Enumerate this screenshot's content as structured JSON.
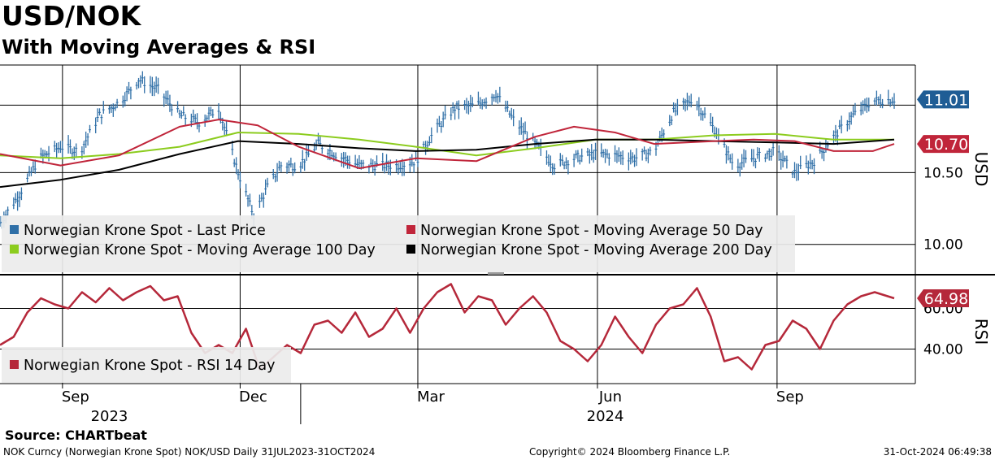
{
  "title": "USD/NOK",
  "subtitle": "With Moving Averages & RSI",
  "source": "Source:  CHARTbeat",
  "footer_left": "NOK Curncy (Norwegian Krone Spot) NOK/USD  Daily 31JUL2023-31OCT2024",
  "footer_center": "Copyright© 2024 Bloomberg Finance L.P.",
  "footer_right": "31-Oct-2024 06:49:38",
  "colors": {
    "price": "#2f6fa7",
    "ma50": "#c0253a",
    "ma100": "#8ccc1e",
    "ma200": "#000000",
    "rsi": "#b5283a",
    "last_badge": "#1f5d95",
    "ma50_badge": "#c0253a",
    "rsi_badge": "#b5283a"
  },
  "chart_data": [
    {
      "type": "line",
      "panel": "price",
      "title": "USD/NOK",
      "ylabel": "USD",
      "ylim": [
        9.8,
        11.25
      ],
      "yticks": [
        10.0,
        10.5
      ],
      "yticklabels": [
        "10.00",
        "10.50"
      ],
      "month_labels": [
        "Sep",
        "Dec",
        "Mar",
        "Jun",
        "Sep"
      ],
      "month_dates": [
        "2023-09-01",
        "2023-12-01",
        "2024-03-01",
        "2024-06-01",
        "2024-09-01"
      ],
      "year_labels": [
        {
          "date": "2023-09-25",
          "label": "2023"
        },
        {
          "date": "2024-06-05",
          "label": "2024"
        }
      ],
      "year_separator": "2024-01-01",
      "x_range": [
        "2023-07-31",
        "2024-10-31"
      ],
      "last_price": "11.01",
      "ma50_last": "10.70",
      "legend": [
        "Norwegian Krone Spot - Last Price",
        "Norwegian Krone Spot - Moving Average 50 Day",
        "Norwegian Krone Spot - Moving Average 100 Day",
        "Norwegian Krone Spot - Moving Average 200 Day"
      ],
      "series": [
        {
          "name": "Norwegian Krone Spot - Last Price",
          "dates": [
            "2023-07-31",
            "2023-08-10",
            "2023-08-20",
            "2023-08-31",
            "2023-09-10",
            "2023-09-20",
            "2023-10-01",
            "2023-10-10",
            "2023-10-20",
            "2023-10-31",
            "2023-11-10",
            "2023-11-20",
            "2023-11-30",
            "2023-12-08",
            "2023-12-15",
            "2023-12-22",
            "2023-12-31",
            "2024-01-10",
            "2024-01-20",
            "2024-01-31",
            "2024-02-10",
            "2024-02-20",
            "2024-02-29",
            "2024-03-10",
            "2024-03-20",
            "2024-03-31",
            "2024-04-10",
            "2024-04-20",
            "2024-04-30",
            "2024-05-10",
            "2024-05-20",
            "2024-05-31",
            "2024-06-10",
            "2024-06-20",
            "2024-06-30",
            "2024-07-10",
            "2024-07-20",
            "2024-07-31",
            "2024-08-10",
            "2024-08-20",
            "2024-08-31",
            "2024-09-10",
            "2024-09-20",
            "2024-09-30",
            "2024-10-10",
            "2024-10-20",
            "2024-10-31"
          ],
          "values": [
            10.15,
            10.35,
            10.6,
            10.68,
            10.65,
            10.9,
            11.0,
            11.15,
            11.08,
            10.9,
            10.85,
            10.95,
            10.5,
            10.2,
            10.4,
            10.55,
            10.55,
            10.7,
            10.62,
            10.55,
            10.55,
            10.55,
            10.58,
            10.8,
            10.95,
            10.97,
            11.05,
            10.85,
            10.7,
            10.55,
            10.6,
            10.63,
            10.62,
            10.6,
            10.65,
            10.92,
            11.02,
            10.8,
            10.55,
            10.6,
            10.65,
            10.5,
            10.58,
            10.75,
            10.9,
            11.0,
            11.01
          ]
        },
        {
          "name": "Norwegian Krone Spot - Moving Average 50 Day",
          "dates": [
            "2023-07-31",
            "2023-08-31",
            "2023-09-30",
            "2023-10-31",
            "2023-11-20",
            "2023-12-10",
            "2023-12-31",
            "2024-01-31",
            "2024-02-29",
            "2024-03-31",
            "2024-04-30",
            "2024-05-20",
            "2024-06-10",
            "2024-06-30",
            "2024-07-31",
            "2024-08-20",
            "2024-09-10",
            "2024-09-30",
            "2024-10-20",
            "2024-10-31"
          ],
          "values": [
            10.63,
            10.55,
            10.62,
            10.82,
            10.87,
            10.83,
            10.68,
            10.53,
            10.6,
            10.58,
            10.75,
            10.82,
            10.78,
            10.7,
            10.72,
            10.73,
            10.72,
            10.65,
            10.65,
            10.7
          ]
        },
        {
          "name": "Norwegian Krone Spot - Moving Average 100 Day",
          "dates": [
            "2023-07-31",
            "2023-08-31",
            "2023-09-30",
            "2023-10-31",
            "2023-11-30",
            "2023-12-31",
            "2024-01-31",
            "2024-02-29",
            "2024-03-31",
            "2024-04-30",
            "2024-05-31",
            "2024-06-30",
            "2024-07-31",
            "2024-08-31",
            "2024-09-30",
            "2024-10-31"
          ],
          "values": [
            10.62,
            10.6,
            10.63,
            10.68,
            10.78,
            10.77,
            10.73,
            10.68,
            10.62,
            10.67,
            10.73,
            10.73,
            10.76,
            10.77,
            10.73,
            10.73
          ]
        },
        {
          "name": "Norwegian Krone Spot - Moving Average 200 Day",
          "dates": [
            "2023-07-31",
            "2023-08-31",
            "2023-09-30",
            "2023-10-31",
            "2023-11-30",
            "2023-12-31",
            "2024-01-31",
            "2024-02-29",
            "2024-03-31",
            "2024-04-30",
            "2024-05-31",
            "2024-06-30",
            "2024-07-31",
            "2024-08-31",
            "2024-09-30",
            "2024-10-31"
          ],
          "values": [
            10.4,
            10.45,
            10.52,
            10.63,
            10.72,
            10.7,
            10.67,
            10.65,
            10.66,
            10.7,
            10.73,
            10.73,
            10.72,
            10.71,
            10.7,
            10.73
          ]
        }
      ]
    },
    {
      "type": "line",
      "panel": "rsi",
      "ylabel": "RSI",
      "ylim": [
        23,
        75
      ],
      "yticks": [
        40,
        60
      ],
      "yticklabels": [
        "40.00",
        "60.00"
      ],
      "last_value": "64.98",
      "legend": [
        "Norwegian Krone Spot - RSI 14 Day"
      ],
      "series": [
        {
          "name": "Norwegian Krone Spot - RSI 14 Day",
          "dates": [
            "2023-07-31",
            "2023-08-07",
            "2023-08-14",
            "2023-08-21",
            "2023-08-28",
            "2023-09-04",
            "2023-09-11",
            "2023-09-18",
            "2023-09-25",
            "2023-10-02",
            "2023-10-09",
            "2023-10-16",
            "2023-10-23",
            "2023-10-30",
            "2023-11-06",
            "2023-11-13",
            "2023-11-20",
            "2023-11-27",
            "2023-12-04",
            "2023-12-11",
            "2023-12-18",
            "2023-12-25",
            "2024-01-01",
            "2024-01-08",
            "2024-01-15",
            "2024-01-22",
            "2024-01-29",
            "2024-02-05",
            "2024-02-12",
            "2024-02-19",
            "2024-02-26",
            "2024-03-04",
            "2024-03-11",
            "2024-03-18",
            "2024-03-25",
            "2024-04-01",
            "2024-04-08",
            "2024-04-15",
            "2024-04-22",
            "2024-04-29",
            "2024-05-06",
            "2024-05-13",
            "2024-05-20",
            "2024-05-27",
            "2024-06-03",
            "2024-06-10",
            "2024-06-17",
            "2024-06-24",
            "2024-07-01",
            "2024-07-08",
            "2024-07-15",
            "2024-07-22",
            "2024-07-29",
            "2024-08-05",
            "2024-08-12",
            "2024-08-19",
            "2024-08-26",
            "2024-09-02",
            "2024-09-09",
            "2024-09-16",
            "2024-09-23",
            "2024-09-30",
            "2024-10-07",
            "2024-10-14",
            "2024-10-21",
            "2024-10-31"
          ],
          "values": [
            42,
            46,
            58,
            65,
            62,
            60,
            68,
            63,
            70,
            64,
            68,
            71,
            64,
            66,
            48,
            38,
            42,
            38,
            50,
            30,
            36,
            42,
            38,
            52,
            54,
            48,
            58,
            46,
            50,
            60,
            48,
            60,
            68,
            72,
            58,
            66,
            64,
            52,
            60,
            66,
            58,
            44,
            40,
            34,
            42,
            56,
            46,
            38,
            52,
            60,
            62,
            70,
            56,
            34,
            36,
            30,
            42,
            44,
            54,
            50,
            40,
            54,
            62,
            66,
            68,
            64.98
          ]
        }
      ]
    }
  ]
}
